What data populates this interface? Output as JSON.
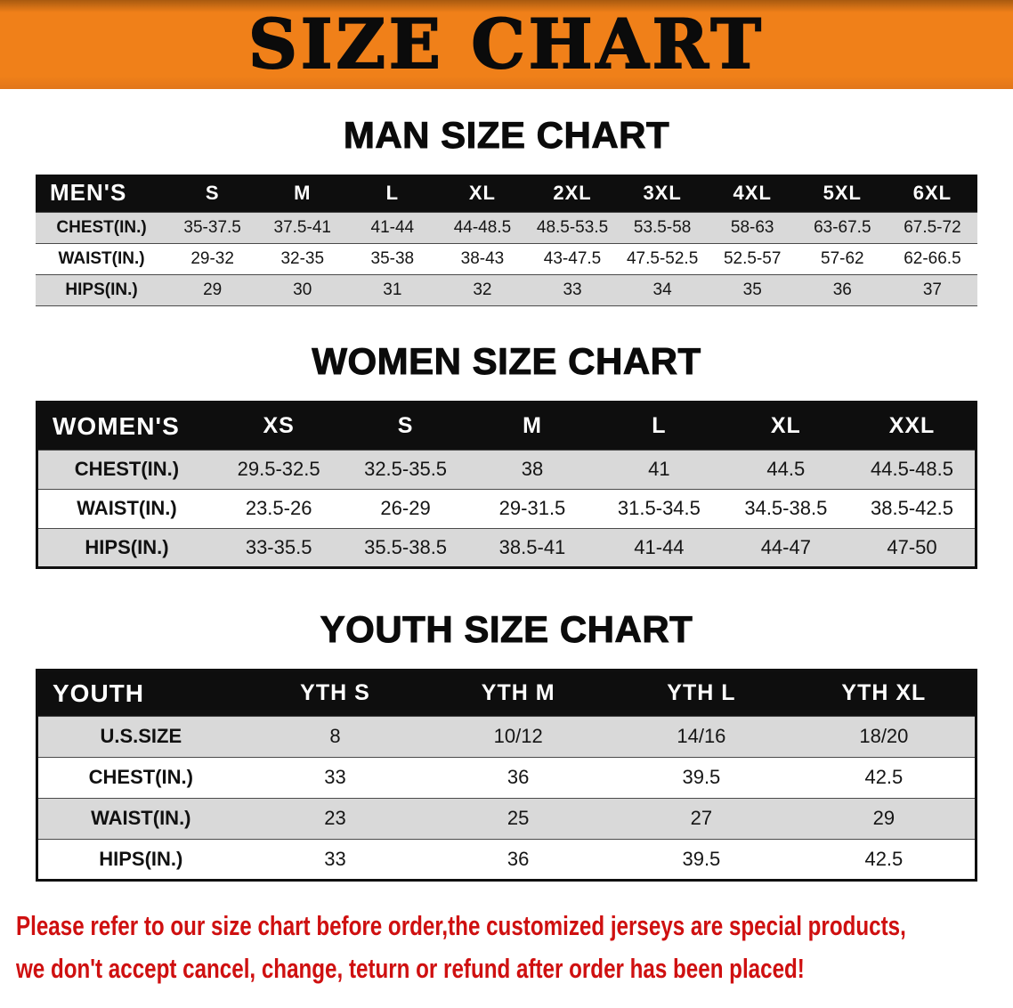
{
  "banner": {
    "title": "SIZE CHART"
  },
  "colors": {
    "banner_orange": "#f08019",
    "banner_dark": "#a85a10",
    "header_black": "#0e0e0e",
    "row_gray": "#d9d9d9",
    "notice_red": "#cf1010",
    "title_black": "#0b0b0b"
  },
  "sections": [
    {
      "heading": "MAN SIZE CHART",
      "table": {
        "header": [
          "MEN'S",
          "S",
          "M",
          "L",
          "XL",
          "2XL",
          "3XL",
          "4XL",
          "5XL",
          "6XL"
        ],
        "rows": [
          [
            "CHEST(IN.)",
            "35-37.5",
            "37.5-41",
            "41-44",
            "44-48.5",
            "48.5-53.5",
            "53.5-58",
            "58-63",
            "63-67.5",
            "67.5-72"
          ],
          [
            "WAIST(IN.)",
            "29-32",
            "32-35",
            "35-38",
            "38-43",
            "43-47.5",
            "47.5-52.5",
            "52.5-57",
            "57-62",
            "62-66.5"
          ],
          [
            "HIPS(IN.)",
            "29",
            "30",
            "31",
            "32",
            "33",
            "34",
            "35",
            "36",
            "37"
          ]
        ]
      }
    },
    {
      "heading": "WOMEN SIZE CHART",
      "table": {
        "header": [
          "WOMEN'S",
          "XS",
          "S",
          "M",
          "L",
          "XL",
          "XXL"
        ],
        "rows": [
          [
            "CHEST(IN.)",
            "29.5-32.5",
            "32.5-35.5",
            "38",
            "41",
            "44.5",
            "44.5-48.5"
          ],
          [
            "WAIST(IN.)",
            "23.5-26",
            "26-29",
            "29-31.5",
            "31.5-34.5",
            "34.5-38.5",
            "38.5-42.5"
          ],
          [
            "HIPS(IN.)",
            "33-35.5",
            "35.5-38.5",
            "38.5-41",
            "41-44",
            "44-47",
            "47-50"
          ]
        ]
      }
    },
    {
      "heading": "YOUTH SIZE CHART",
      "table": {
        "header": [
          "YOUTH",
          "YTH S",
          "YTH M",
          "YTH L",
          "YTH XL"
        ],
        "rows": [
          [
            "U.S.SIZE",
            "8",
            "10/12",
            "14/16",
            "18/20"
          ],
          [
            "CHEST(IN.)",
            "33",
            "36",
            "39.5",
            "42.5"
          ],
          [
            "WAIST(IN.)",
            "23",
            "25",
            "27",
            "29"
          ],
          [
            "HIPS(IN.)",
            "33",
            "36",
            "39.5",
            "42.5"
          ]
        ]
      }
    }
  ],
  "footer": {
    "line1": "Please refer to our size chart before order,the customized jerseys are special products,",
    "line2": "we don't accept cancel, change, teturn or refund after order has been placed!"
  }
}
